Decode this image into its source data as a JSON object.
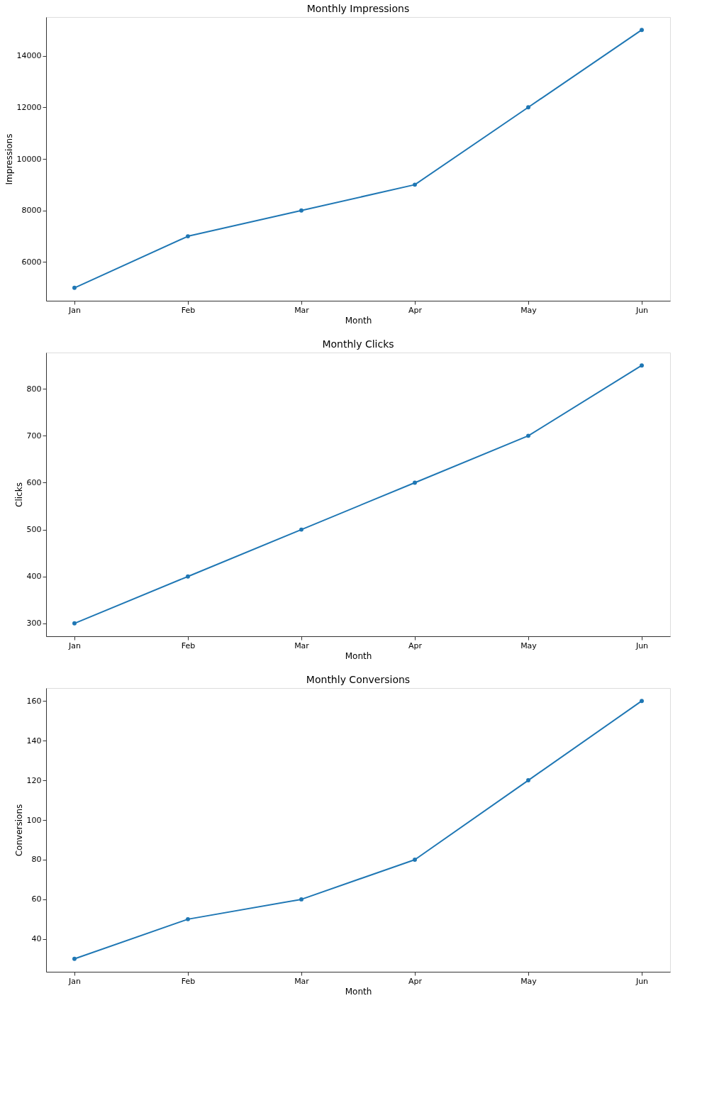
{
  "chart_data": [
    {
      "type": "line",
      "title": "Monthly Impressions",
      "xlabel": "Month",
      "ylabel": "Impressions",
      "categories": [
        "Jan",
        "Feb",
        "Mar",
        "Apr",
        "May",
        "Jun"
      ],
      "series": [
        {
          "color": "#1f77b4",
          "values": [
            5000,
            7000,
            8000,
            9000,
            12000,
            15000
          ]
        }
      ],
      "ylim": [
        4500,
        15500
      ],
      "yticks": [
        6000,
        8000,
        10000,
        12000,
        14000
      ],
      "marker": "circle",
      "grid": false
    },
    {
      "type": "line",
      "title": "Monthly Clicks",
      "xlabel": "Month",
      "ylabel": "Clicks",
      "categories": [
        "Jan",
        "Feb",
        "Mar",
        "Apr",
        "May",
        "Jun"
      ],
      "series": [
        {
          "color": "#1f77b4",
          "values": [
            300,
            400,
            500,
            600,
            700,
            850
          ]
        }
      ],
      "ylim": [
        272.5,
        877.5
      ],
      "yticks": [
        300,
        400,
        500,
        600,
        700,
        800
      ],
      "marker": "circle",
      "grid": false
    },
    {
      "type": "line",
      "title": "Monthly Conversions",
      "xlabel": "Month",
      "ylabel": "Conversions",
      "categories": [
        "Jan",
        "Feb",
        "Mar",
        "Apr",
        "May",
        "Jun"
      ],
      "series": [
        {
          "color": "#1f77b4",
          "values": [
            30,
            50,
            60,
            80,
            120,
            160
          ]
        }
      ],
      "ylim": [
        23.5,
        166.5
      ],
      "yticks": [
        40,
        60,
        80,
        100,
        120,
        140,
        160
      ],
      "marker": "circle",
      "grid": false
    }
  ]
}
